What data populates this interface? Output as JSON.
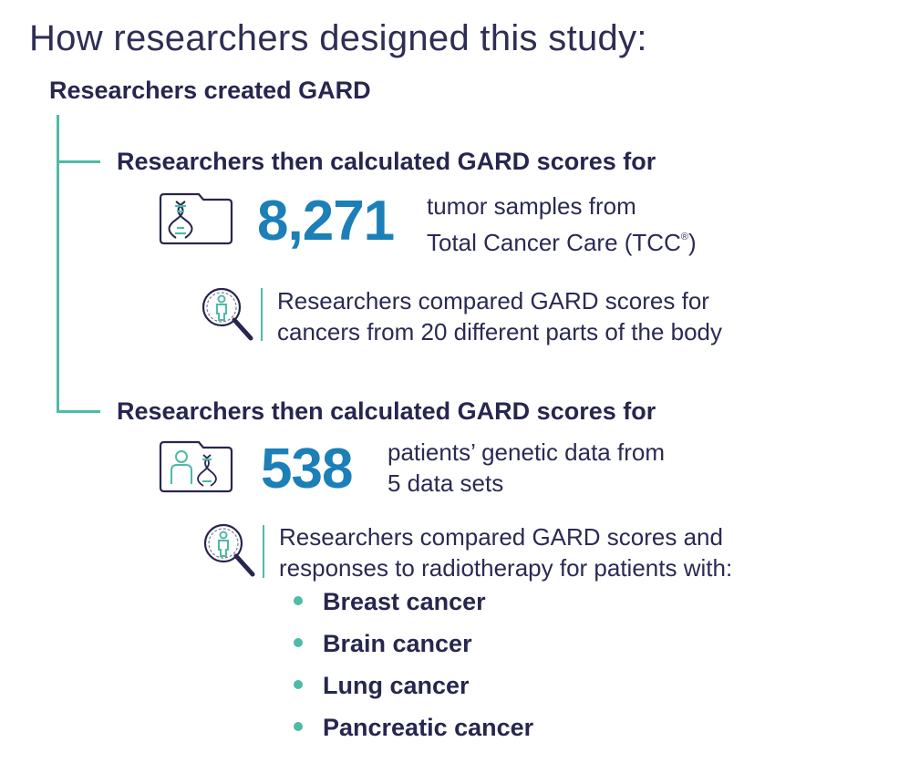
{
  "title": "How researchers designed this study:",
  "step1": {
    "heading": "Researchers created GARD"
  },
  "step2": {
    "heading": "Researchers then calculated GARD scores for",
    "number": "8,271",
    "desc_line1": "tumor samples from",
    "desc_line2_main": "Total Cancer Care (TCC",
    "desc_line2_reg": "®",
    "desc_line2_end": ")",
    "note_line1": "Researchers compared GARD scores for",
    "note_line2": "cancers from 20 different parts of the body"
  },
  "step3": {
    "heading": "Researchers then calculated GARD scores for",
    "number": "538",
    "desc_line1": "patients’ genetic data from",
    "desc_line2": "5 data sets",
    "note_line1": "Researchers compared GARD scores and",
    "note_line2": "responses to radiotherapy for patients with:",
    "cancers": [
      "Breast cancer",
      "Brain cancer",
      "Lung cancer",
      "Pancreatic cancer"
    ]
  },
  "icons": {
    "dna_folder": "dna-folder-icon",
    "patient_dna_folder": "patient-dna-folder-icon",
    "magnifier_person": "magnifier-person-icon"
  },
  "colors": {
    "navy": "#26264f",
    "teal": "#4dbba6",
    "blue": "#1c7fb8"
  }
}
